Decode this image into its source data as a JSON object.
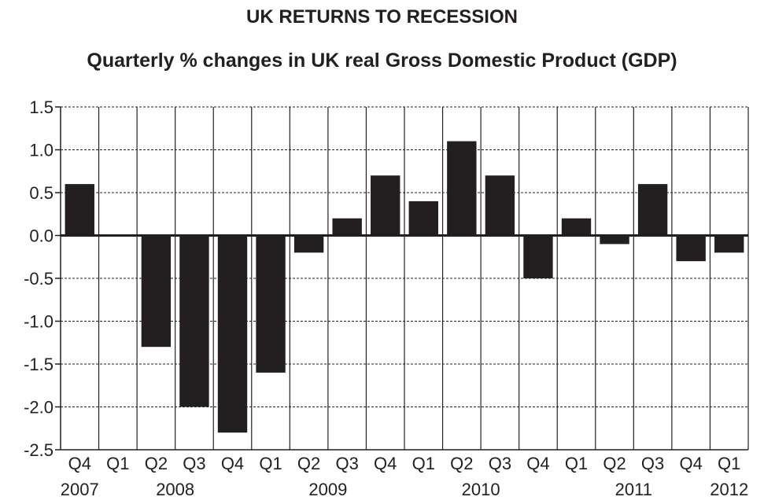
{
  "chart_data": {
    "type": "bar",
    "title": "UK RETURNS TO RECESSION",
    "subtitle": "Quarterly % changes in UK real Gross Domestic Product (GDP)",
    "xlabel": "",
    "ylabel": "",
    "categories": [
      "Q4",
      "Q1",
      "Q2",
      "Q3",
      "Q4",
      "Q1",
      "Q2",
      "Q3",
      "Q4",
      "Q1",
      "Q2",
      "Q3",
      "Q4",
      "Q1",
      "Q2",
      "Q3",
      "Q4",
      "Q1"
    ],
    "years": [
      {
        "label": "2007",
        "index": 0
      },
      {
        "label": "2008",
        "index": 2.5
      },
      {
        "label": "2009",
        "index": 6.5
      },
      {
        "label": "2010",
        "index": 10.5
      },
      {
        "label": "2011",
        "index": 14.5
      },
      {
        "label": "2012",
        "index": 17
      }
    ],
    "values": [
      0.6,
      0.0,
      -1.3,
      -2.0,
      -2.3,
      -1.6,
      -0.2,
      0.2,
      0.7,
      0.4,
      1.1,
      0.7,
      -0.5,
      0.2,
      -0.1,
      0.6,
      -0.3,
      -0.2
    ],
    "ylim": [
      -2.5,
      1.5
    ],
    "yticks": [
      "1.5",
      "1.0",
      "0.5",
      "0.0",
      "-0.5",
      "-1.0",
      "-1.5",
      "-2.0",
      "-2.5"
    ],
    "ytick_values": [
      1.5,
      1.0,
      0.5,
      0.0,
      -0.5,
      -1.0,
      -1.5,
      -2.0,
      -2.5
    ],
    "grid": true,
    "colors": {
      "bar": "#231f20",
      "axis": "#231f20",
      "grid": "#231f20"
    }
  }
}
